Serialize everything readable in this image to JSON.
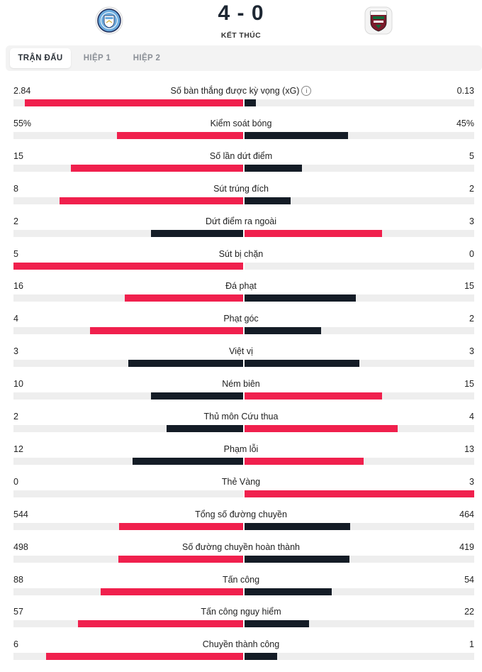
{
  "match": {
    "score": "4 - 0",
    "status": "KẾT THÚC",
    "home_logo_icon": "manchester-city-crest-icon",
    "away_logo_icon": "fluminense-crest-icon"
  },
  "tabs": [
    {
      "label": "TRẬN ĐẤU",
      "active": true
    },
    {
      "label": "HIỆP 1",
      "active": false
    },
    {
      "label": "HIỆP 2",
      "active": false
    }
  ],
  "colors": {
    "leader": "#f0204d",
    "trailer": "#141c26",
    "track": "#eeeeee"
  },
  "stats": [
    {
      "label": "Số bàn thắng được kỳ vọng (xG)",
      "home": "2.84",
      "away": "0.13",
      "info": true,
      "home_fill": 0.95,
      "away_fill": 0.05
    },
    {
      "label": "Kiểm soát bóng",
      "home": "55%",
      "away": "45%",
      "home_fill": 0.55,
      "away_fill": 0.45
    },
    {
      "label": "Số lần dứt điểm",
      "home": "15",
      "away": "5",
      "home_fill": 0.75,
      "away_fill": 0.25
    },
    {
      "label": "Sút trúng đích",
      "home": "8",
      "away": "2",
      "home_fill": 0.8,
      "away_fill": 0.2
    },
    {
      "label": "Dứt điểm ra ngoài",
      "home": "2",
      "away": "3",
      "home_fill": 0.4,
      "away_fill": 0.6
    },
    {
      "label": "Sút bị chặn",
      "home": "5",
      "away": "0",
      "home_fill": 1.0,
      "away_fill": 0.0
    },
    {
      "label": "Đá phạt",
      "home": "16",
      "away": "15",
      "home_fill": 0.516,
      "away_fill": 0.484
    },
    {
      "label": "Phạt góc",
      "home": "4",
      "away": "2",
      "home_fill": 0.667,
      "away_fill": 0.333
    },
    {
      "label": "Việt vị",
      "home": "3",
      "away": "3",
      "home_fill": 0.5,
      "away_fill": 0.5
    },
    {
      "label": "Ném biên",
      "home": "10",
      "away": "15",
      "home_fill": 0.4,
      "away_fill": 0.6
    },
    {
      "label": "Thủ môn Cứu thua",
      "home": "2",
      "away": "4",
      "home_fill": 0.333,
      "away_fill": 0.667
    },
    {
      "label": "Phạm lỗi",
      "home": "12",
      "away": "13",
      "home_fill": 0.48,
      "away_fill": 0.52
    },
    {
      "label": "Thẻ Vàng",
      "home": "0",
      "away": "3",
      "home_fill": 0.0,
      "away_fill": 1.0
    },
    {
      "label": "Tổng số đường chuyền",
      "home": "544",
      "away": "464",
      "home_fill": 0.54,
      "away_fill": 0.46
    },
    {
      "label": "Số đường chuyền hoàn thành",
      "home": "498",
      "away": "419",
      "home_fill": 0.543,
      "away_fill": 0.457
    },
    {
      "label": "Tấn công",
      "home": "88",
      "away": "54",
      "home_fill": 0.62,
      "away_fill": 0.38
    },
    {
      "label": "Tấn công nguy hiểm",
      "home": "57",
      "away": "22",
      "home_fill": 0.72,
      "away_fill": 0.28
    },
    {
      "label": "Chuyền thành công",
      "home": "6",
      "away": "1",
      "home_fill": 0.857,
      "away_fill": 0.143
    }
  ]
}
